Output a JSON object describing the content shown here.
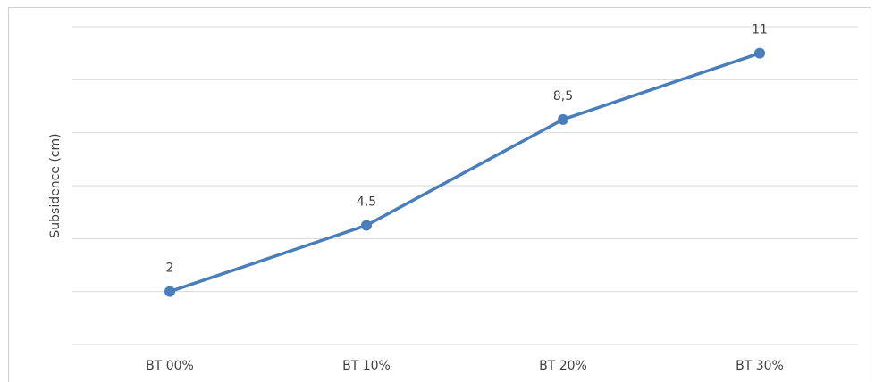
{
  "chart_data": {
    "type": "line",
    "y_label": "Subsidence  (cm)",
    "categories": [
      "BT 00%",
      "BT 10%",
      "BT 20%",
      "BT 30%"
    ],
    "series": [
      {
        "color": "#4a7ebb",
        "values": [
          2,
          4.5,
          8.5,
          11
        ],
        "value_labels": [
          "2",
          "4,5",
          "8,5",
          "11"
        ]
      }
    ],
    "ylim": [
      0,
      12
    ],
    "yticks": [
      0,
      2,
      4,
      6,
      8,
      10,
      12
    ],
    "show_ytick_labels": false,
    "grid": true
  }
}
